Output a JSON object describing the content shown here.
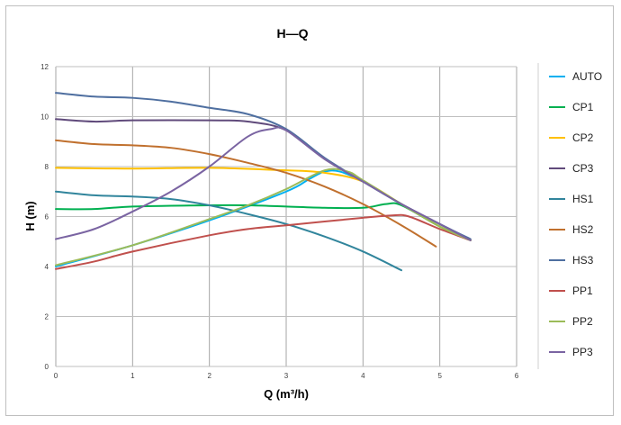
{
  "chart_data": {
    "type": "line",
    "title": "H—Q",
    "xlabel": "Q (m³/h)",
    "ylabel": "H (m)",
    "xlim": [
      0,
      6
    ],
    "ylim": [
      0,
      12
    ],
    "xticks": [
      "0",
      "1",
      "2",
      "3",
      "4",
      "5",
      "6"
    ],
    "yticks": [
      "0",
      "2",
      "4",
      "6",
      "8",
      "10",
      "12"
    ],
    "grid": true,
    "legend_position": "right",
    "series": [
      {
        "name": "AUTO",
        "color": "#00B0F0",
        "points": [
          [
            0,
            4.0
          ],
          [
            1,
            4.85
          ],
          [
            2,
            5.85
          ],
          [
            3,
            7.0
          ],
          [
            3.3,
            7.5
          ],
          [
            3.5,
            7.8
          ],
          [
            3.7,
            7.8
          ],
          [
            4,
            7.4
          ],
          [
            4.5,
            6.5
          ],
          [
            5,
            5.6
          ],
          [
            5.4,
            5.05
          ]
        ]
      },
      {
        "name": "CP1",
        "color": "#00B050",
        "points": [
          [
            0,
            6.3
          ],
          [
            0.5,
            6.3
          ],
          [
            1,
            6.4
          ],
          [
            2,
            6.45
          ],
          [
            2.5,
            6.45
          ],
          [
            3,
            6.4
          ],
          [
            3.5,
            6.35
          ],
          [
            4,
            6.35
          ],
          [
            4.3,
            6.5
          ],
          [
            4.5,
            6.45
          ],
          [
            5,
            5.6
          ],
          [
            5.4,
            5.05
          ]
        ]
      },
      {
        "name": "CP2",
        "color": "#FFC000",
        "points": [
          [
            0,
            7.95
          ],
          [
            1,
            7.92
          ],
          [
            2,
            7.95
          ],
          [
            3,
            7.85
          ],
          [
            3.5,
            7.75
          ],
          [
            4,
            7.4
          ],
          [
            4.5,
            6.5
          ],
          [
            5,
            5.6
          ],
          [
            5.4,
            5.05
          ]
        ]
      },
      {
        "name": "CP3",
        "color": "#604A7B",
        "points": [
          [
            0,
            9.9
          ],
          [
            0.5,
            9.8
          ],
          [
            1,
            9.85
          ],
          [
            2,
            9.85
          ],
          [
            2.5,
            9.8
          ],
          [
            3,
            9.45
          ],
          [
            3.5,
            8.3
          ],
          [
            4,
            7.4
          ],
          [
            4.5,
            6.5
          ],
          [
            5,
            5.7
          ],
          [
            5.4,
            5.05
          ]
        ]
      },
      {
        "name": "HS1",
        "color": "#31859C",
        "points": [
          [
            0,
            7.0
          ],
          [
            0.5,
            6.85
          ],
          [
            1,
            6.8
          ],
          [
            1.5,
            6.7
          ],
          [
            2,
            6.45
          ],
          [
            2.5,
            6.1
          ],
          [
            3,
            5.7
          ],
          [
            3.5,
            5.2
          ],
          [
            4,
            4.6
          ],
          [
            4.5,
            3.85
          ]
        ]
      },
      {
        "name": "HS2",
        "color": "#C0702E",
        "points": [
          [
            0,
            9.05
          ],
          [
            0.5,
            8.9
          ],
          [
            1,
            8.85
          ],
          [
            1.5,
            8.75
          ],
          [
            2,
            8.5
          ],
          [
            2.5,
            8.15
          ],
          [
            3,
            7.75
          ],
          [
            3.5,
            7.2
          ],
          [
            4,
            6.5
          ],
          [
            4.5,
            5.65
          ],
          [
            4.95,
            4.8
          ]
        ]
      },
      {
        "name": "HS3",
        "color": "#4F6FA0",
        "points": [
          [
            0,
            10.95
          ],
          [
            0.5,
            10.8
          ],
          [
            1,
            10.75
          ],
          [
            1.5,
            10.6
          ],
          [
            2,
            10.35
          ],
          [
            2.5,
            10.1
          ],
          [
            3,
            9.5
          ],
          [
            3.5,
            8.35
          ],
          [
            4,
            7.4
          ],
          [
            4.5,
            6.5
          ],
          [
            5,
            5.7
          ],
          [
            5.4,
            5.1
          ]
        ]
      },
      {
        "name": "PP1",
        "color": "#C0504D",
        "points": [
          [
            0,
            3.9
          ],
          [
            0.5,
            4.2
          ],
          [
            1,
            4.6
          ],
          [
            2,
            5.25
          ],
          [
            2.5,
            5.5
          ],
          [
            3,
            5.65
          ],
          [
            3.5,
            5.8
          ],
          [
            4,
            5.95
          ],
          [
            4.4,
            6.05
          ],
          [
            4.6,
            6.0
          ],
          [
            5,
            5.5
          ],
          [
            5.4,
            5.05
          ]
        ]
      },
      {
        "name": "PP2",
        "color": "#9BBB59",
        "points": [
          [
            0,
            4.05
          ],
          [
            1,
            4.85
          ],
          [
            2,
            5.9
          ],
          [
            2.5,
            6.45
          ],
          [
            3,
            7.1
          ],
          [
            3.5,
            7.85
          ],
          [
            3.8,
            7.8
          ],
          [
            4,
            7.45
          ],
          [
            4.5,
            6.5
          ],
          [
            5,
            5.6
          ],
          [
            5.4,
            5.05
          ]
        ]
      },
      {
        "name": "PP3",
        "color": "#7A64A2",
        "points": [
          [
            0,
            5.1
          ],
          [
            0.5,
            5.5
          ],
          [
            1,
            6.2
          ],
          [
            1.5,
            7.0
          ],
          [
            2,
            8.0
          ],
          [
            2.5,
            9.2
          ],
          [
            2.8,
            9.5
          ],
          [
            3,
            9.45
          ],
          [
            3.5,
            8.3
          ],
          [
            4,
            7.4
          ],
          [
            4.5,
            6.5
          ],
          [
            5,
            5.7
          ],
          [
            5.4,
            5.05
          ]
        ]
      }
    ]
  }
}
